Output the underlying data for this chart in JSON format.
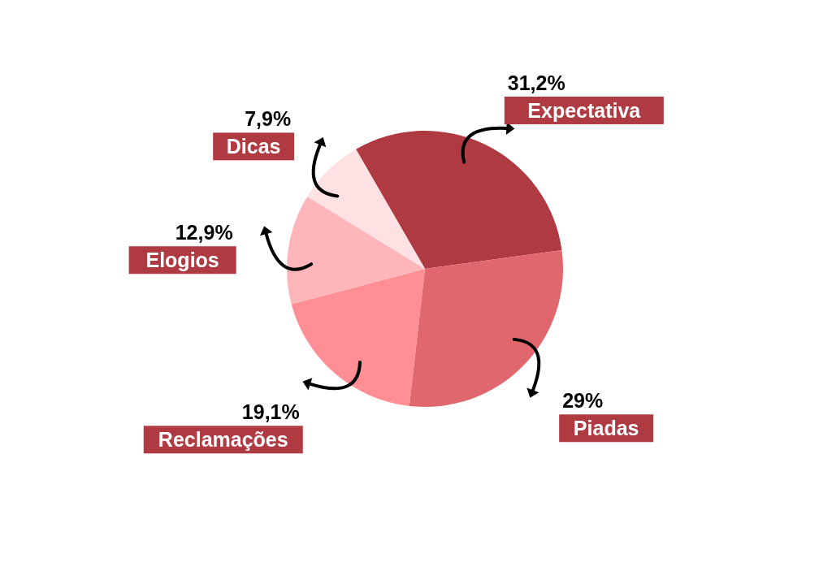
{
  "chart_data": {
    "type": "pie",
    "categories": [
      "Expectativa",
      "Piadas",
      "Reclamações",
      "Elogios",
      "Dicas"
    ],
    "values": [
      31.2,
      29,
      19.1,
      12.9,
      7.9
    ],
    "value_labels": [
      "31,2%",
      "29%",
      "19,1%",
      "12,9%",
      "7,9%"
    ],
    "colors": [
      "#b03a42",
      "#e0676e",
      "#ff8e95",
      "#ffb6bb",
      "#ffe1e4"
    ]
  }
}
